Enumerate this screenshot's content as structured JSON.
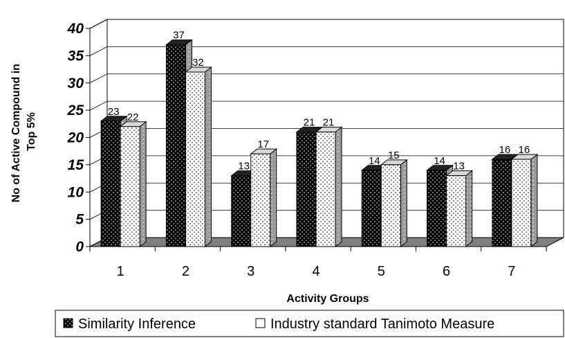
{
  "chart_data": {
    "type": "bar",
    "categories": [
      "1",
      "2",
      "3",
      "4",
      "5",
      "6",
      "7"
    ],
    "series": [
      {
        "name": "Similarity Inference",
        "values": [
          23,
          37,
          13,
          21,
          14,
          14,
          16
        ]
      },
      {
        "name": "Industry standard Tanimoto Measure",
        "values": [
          22,
          32,
          17,
          21,
          15,
          13,
          16
        ]
      }
    ],
    "title": "",
    "xlabel": "Activity Groups",
    "ylabel_lines": [
      "No of Active Compound in",
      "Top 5%"
    ],
    "ylim": [
      0,
      40
    ],
    "yticks": [
      0,
      5,
      10,
      15,
      20,
      25,
      30,
      35,
      40
    ],
    "grid": true,
    "three_d": true,
    "legend": "bottom",
    "colors": {
      "series1": "#000000",
      "series2": "#ffffff",
      "floor": "#808080",
      "wall_line": "#000000"
    }
  }
}
